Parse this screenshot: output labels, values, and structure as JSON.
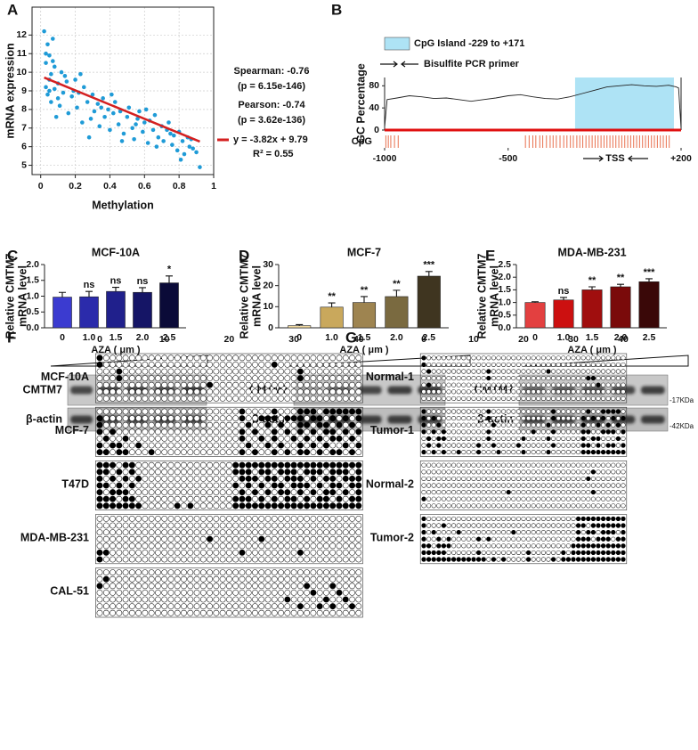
{
  "panel_labels": [
    "A",
    "B",
    "C",
    "D",
    "E",
    "F",
    "G"
  ],
  "chart_data": [
    {
      "type": "scatter",
      "xlabel": "Methylation",
      "ylabel": "mRNA expression",
      "color": "#1f9bd7",
      "grid": true,
      "xlim": [
        -0.05,
        1.0
      ],
      "ylim": [
        4.5,
        13.5
      ],
      "xticks": [
        0,
        0.2,
        0.4,
        0.6,
        0.8,
        1
      ],
      "yticks": [
        5,
        6,
        7,
        8,
        9,
        10,
        11,
        12
      ],
      "x": [
        0.02,
        0.03,
        0.03,
        0.04,
        0.04,
        0.05,
        0.05,
        0.06,
        0.06,
        0.07,
        0.08,
        0.08,
        0.09,
        0.1,
        0.1,
        0.12,
        0.13,
        0.15,
        0.16,
        0.18,
        0.2,
        0.21,
        0.22,
        0.24,
        0.25,
        0.27,
        0.28,
        0.3,
        0.31,
        0.33,
        0.34,
        0.36,
        0.37,
        0.39,
        0.4,
        0.42,
        0.43,
        0.45,
        0.46,
        0.48,
        0.5,
        0.51,
        0.53,
        0.54,
        0.56,
        0.57,
        0.59,
        0.6,
        0.62,
        0.63,
        0.65,
        0.66,
        0.68,
        0.7,
        0.71,
        0.73,
        0.74,
        0.76,
        0.77,
        0.79,
        0.8,
        0.82,
        0.83,
        0.85,
        0.86,
        0.88,
        0.9,
        0.92,
        0.03,
        0.05,
        0.07,
        0.11,
        0.14,
        0.19,
        0.23,
        0.29,
        0.35,
        0.41,
        0.47,
        0.55,
        0.61,
        0.67,
        0.75,
        0.81,
        0.87
      ],
      "y": [
        12.2,
        10.5,
        9.2,
        11.5,
        8.8,
        10.9,
        9.6,
        9.9,
        8.4,
        11.8,
        9.1,
        10.3,
        7.6,
        9.4,
        8.6,
        10.0,
        8.9,
        9.5,
        7.8,
        8.7,
        9.6,
        8.1,
        8.9,
        7.3,
        9.2,
        8.4,
        6.5,
        8.8,
        7.9,
        8.3,
        7.1,
        8.6,
        7.6,
        8.0,
        6.9,
        7.8,
        8.4,
        7.2,
        7.9,
        6.7,
        7.6,
        8.1,
        7.0,
        6.4,
        7.5,
        7.9,
        6.8,
        7.3,
        6.2,
        7.4,
        6.9,
        7.7,
        6.5,
        7.1,
        6.3,
        6.9,
        7.3,
        6.1,
        6.6,
        5.8,
        6.8,
        6.3,
        5.6,
        6.5,
        6.0,
        5.9,
        5.7,
        4.9,
        11.0,
        9.0,
        10.6,
        8.2,
        9.8,
        9.0,
        9.9,
        7.5,
        8.1,
        8.8,
        6.3,
        7.2,
        8.0,
        6.0,
        6.7,
        5.3,
        6.4
      ],
      "annotations": [
        "Spearman: -0.76",
        "(p = 6.15e-146)",
        "Pearson: -0.74",
        "(p = 3.62e-136)"
      ],
      "trend": {
        "slope": -3.82,
        "intercept": 9.79,
        "label": "y = -3.82x + 9.79",
        "r2_label": "R² = 0.55",
        "color": "#d42020"
      }
    },
    {
      "type": "line",
      "ylabel": "GC Percentage",
      "color": "#222222",
      "baseline_color": "#e01010",
      "xlim": [
        -1000,
        200
      ],
      "ylim": [
        0,
        95
      ],
      "xticks": [
        -1000,
        -500,
        {
          "value": 200,
          "label": "+200"
        }
      ],
      "yticks": [
        0,
        40,
        80
      ],
      "x": [
        -1000,
        -990,
        -950,
        -900,
        -850,
        -800,
        -750,
        -700,
        -650,
        -600,
        -550,
        -500,
        -450,
        -400,
        -350,
        -300,
        -250,
        -200,
        -150,
        -100,
        -50,
        0,
        50,
        100,
        150,
        180,
        190,
        200
      ],
      "y": [
        5,
        55,
        58,
        62,
        60,
        57,
        58,
        55,
        52,
        55,
        58,
        62,
        64,
        60,
        57,
        56,
        60,
        66,
        72,
        78,
        80,
        82,
        80,
        79,
        81,
        78,
        76,
        3
      ],
      "island": {
        "range": [
          -229,
          171
        ],
        "label": "CpG Island -229 to +171",
        "color": "#aee3f5"
      },
      "primer_label": "Bisulfite PCR primer",
      "cpg_label": "CpG",
      "cpg_color": "#e8704e",
      "tss_label": "TSS",
      "cpg_sites": [
        -995,
        -985,
        -975,
        -960,
        -945,
        -430,
        -415,
        -400,
        -388,
        -372,
        -360,
        -345,
        -330,
        -318,
        -305,
        -290,
        -275,
        -262,
        -248,
        -236,
        -222,
        -210,
        -198,
        -185,
        -172,
        -160,
        -148,
        -136,
        -124,
        -112,
        -100,
        -88,
        -76,
        -64,
        -52,
        -40,
        -28,
        -16,
        -4,
        8,
        20,
        32,
        44,
        56,
        68,
        80,
        92,
        104,
        116,
        128,
        140,
        152
      ]
    },
    {
      "type": "bar",
      "title": "MCF-10A",
      "ylabel": [
        "Relative CMTM7",
        "mRNA level"
      ],
      "xlabel": "AZA ( μm )",
      "categories": [
        "0",
        "1.0",
        "1.5",
        "2.0",
        "2.5"
      ],
      "values": [
        0.97,
        0.98,
        1.15,
        1.12,
        1.42
      ],
      "errors": [
        0.15,
        0.17,
        0.13,
        0.15,
        0.22
      ],
      "annotations": [
        null,
        "ns",
        "ns",
        "ns",
        "*"
      ],
      "colors": [
        "#3b3bd0",
        "#2b2bab",
        "#20208c",
        "#151566",
        "#0b0b38"
      ],
      "ylim": [
        0,
        2.0
      ],
      "yticks": [
        {
          "value": 0,
          "label": "0.0"
        },
        0.5,
        {
          "value": 1,
          "label": "1.0"
        },
        1.5,
        {
          "value": 2,
          "label": "2.0"
        }
      ],
      "blot": {
        "rows": [
          "CMTM7",
          "β-actin"
        ]
      }
    },
    {
      "type": "bar",
      "title": "MCF-7",
      "ylabel": [
        "Relative CMTM7",
        "mRNA level"
      ],
      "xlabel": "AZA ( μm )",
      "categories": [
        "0",
        "1.0",
        "1.5",
        "2.0",
        "2.5"
      ],
      "values": [
        1.0,
        9.8,
        12.0,
        14.8,
        24.5
      ],
      "errors": [
        0.5,
        2.0,
        2.8,
        3.0,
        2.2
      ],
      "annotations": [
        null,
        "**",
        "**",
        "**",
        "***"
      ],
      "colors": [
        "#f0d9a0",
        "#c9a85c",
        "#9e8450",
        "#7a6a40",
        "#3f3520"
      ],
      "ylim": [
        0,
        30
      ],
      "yticks": [
        0,
        10,
        20,
        30
      ],
      "blot": {
        "rows": [
          "CMTM7",
          "β-actin"
        ]
      }
    },
    {
      "type": "bar",
      "title": "MDA-MB-231",
      "ylabel": [
        "Relative CMTM7",
        "mRNA level"
      ],
      "xlabel": "AZA ( μm )",
      "categories": [
        "0",
        "1.0",
        "1.5",
        "2.0",
        "2.5"
      ],
      "values": [
        1.0,
        1.1,
        1.5,
        1.62,
        1.82
      ],
      "errors": [
        0.03,
        0.1,
        0.12,
        0.1,
        0.12
      ],
      "annotations": [
        null,
        "ns",
        "**",
        "**",
        "***"
      ],
      "colors": [
        "#e34040",
        "#cc1010",
        "#a00e0e",
        "#7a0a0a",
        "#3a0808"
      ],
      "ylim": [
        0,
        2.5
      ],
      "yticks": [
        {
          "value": 0,
          "label": "0.0"
        },
        0.5,
        {
          "value": 1,
          "label": "1.0"
        },
        1.5,
        {
          "value": 2,
          "label": "2.0"
        },
        2.5
      ],
      "blot": {
        "rows": [
          "CMTM7",
          "β-actin"
        ],
        "markers": [
          "-17KDa",
          "-42KDa"
        ]
      }
    }
  ],
  "methylation": [
    {
      "columns": [
        0,
        10,
        20,
        30,
        40
      ],
      "samples": [
        {
          "name": "MCF-10A",
          "methylated": [
            [
              0
            ],
            [
              0,
              27
            ],
            [
              3,
              31
            ],
            [
              3,
              31
            ],
            [
              17
            ],
            [],
            []
          ]
        },
        {
          "name": "MCF-7",
          "methylated": [
            [
              22,
              27,
              31,
              32,
              33,
              35,
              36,
              37,
              38,
              39,
              40
            ],
            [
              0,
              22,
              25,
              26,
              27,
              29,
              30,
              31,
              33,
              34,
              36,
              38,
              40
            ],
            [
              0,
              23,
              26,
              28,
              31,
              32,
              34,
              35,
              37,
              39
            ],
            [
              0,
              2,
              22,
              24,
              27,
              29,
              31,
              33,
              35,
              36,
              38,
              40
            ],
            [
              1,
              4,
              22,
              25,
              27,
              30,
              32,
              34,
              36,
              37,
              39
            ],
            [
              0,
              2,
              3,
              6,
              23,
              26,
              28,
              31,
              33,
              35,
              38,
              40
            ],
            [
              0,
              1,
              3,
              4,
              8,
              22,
              24,
              27,
              29,
              31,
              32,
              34,
              36,
              37,
              39
            ]
          ]
        },
        {
          "name": "T47D",
          "methylated": [
            [
              0,
              1,
              2,
              4,
              5,
              21,
              22,
              23,
              24,
              25,
              26,
              27,
              28,
              29,
              30,
              31,
              32,
              33,
              34,
              35,
              36,
              37,
              38,
              39,
              40
            ],
            [
              0,
              1,
              3,
              5,
              21,
              22,
              23,
              25,
              26,
              28,
              29,
              30,
              32,
              33,
              34,
              36,
              37,
              38,
              40
            ],
            [
              0,
              2,
              4,
              6,
              22,
              23,
              24,
              26,
              27,
              29,
              30,
              31,
              33,
              35,
              36,
              38,
              39,
              40
            ],
            [
              0,
              1,
              3,
              5,
              21,
              23,
              25,
              27,
              28,
              30,
              31,
              32,
              34,
              36,
              37,
              39,
              40
            ],
            [
              0,
              2,
              3,
              4,
              22,
              24,
              26,
              28,
              29,
              31,
              33,
              35,
              36,
              38,
              40
            ],
            [
              0,
              1,
              2,
              4,
              5,
              21,
              22,
              23,
              25,
              27,
              29,
              30,
              32,
              34,
              35,
              37,
              39,
              40
            ],
            [
              0,
              1,
              2,
              3,
              4,
              5,
              6,
              12,
              14,
              21,
              22,
              23,
              24,
              25,
              26,
              27,
              28,
              29,
              30,
              31,
              32,
              33,
              34,
              35,
              36,
              37,
              38,
              39,
              40
            ]
          ]
        },
        {
          "name": "MDA-MB-231",
          "methylated": [
            [],
            [],
            [],
            [
              17,
              25
            ],
            [],
            [
              0,
              1,
              22,
              31
            ],
            [
              0
            ]
          ]
        },
        {
          "name": "CAL-51",
          "methylated": [
            [],
            [
              1
            ],
            [
              0,
              32,
              36
            ],
            [
              33,
              37
            ],
            [
              29,
              35,
              38
            ],
            [
              31,
              34,
              36,
              39
            ],
            []
          ]
        }
      ]
    },
    {
      "columns": [
        0,
        10,
        20,
        30,
        40
      ],
      "samples": [
        {
          "name": "Normal-1",
          "methylated": [
            [
              0
            ],
            [
              0
            ],
            [
              1,
              13,
              25
            ],
            [
              13,
              33,
              34
            ],
            [
              1,
              35
            ],
            [],
            []
          ]
        },
        {
          "name": "Tumor-1",
          "methylated": [
            [
              0,
              13,
              26,
              33,
              36,
              37,
              38,
              39
            ],
            [
              0,
              2,
              13,
              26,
              32,
              34,
              36,
              38,
              40
            ],
            [
              0,
              3,
              14,
              25,
              32,
              35,
              37,
              39
            ],
            [
              0,
              2,
              4,
              13,
              22,
              26,
              32,
              33,
              36,
              37,
              38,
              40
            ],
            [
              1,
              3,
              4,
              13,
              20,
              25,
              32,
              34,
              35,
              39
            ],
            [
              1,
              3,
              11,
              14,
              19,
              26,
              32,
              33,
              35,
              37,
              38,
              40
            ],
            [
              0,
              2,
              4,
              7,
              11,
              15,
              20,
              25,
              32,
              33,
              34,
              35,
              36,
              37,
              38,
              39,
              40
            ]
          ]
        },
        {
          "name": "Normal-2",
          "methylated": [
            [],
            [
              34
            ],
            [
              33
            ],
            [],
            [
              17,
              34
            ],
            [
              0
            ],
            []
          ]
        },
        {
          "name": "Tumor-2",
          "methylated": [
            [
              0,
              31,
              32,
              33,
              34,
              35,
              36,
              37,
              38,
              39,
              40
            ],
            [
              0,
              4,
              31,
              32,
              34,
              35,
              36,
              37,
              38,
              39,
              40
            ],
            [
              0,
              2,
              7,
              18,
              31,
              33,
              34,
              36,
              37,
              38,
              40
            ],
            [
              0,
              3,
              5,
              11,
              13,
              31,
              32,
              33,
              35,
              36,
              37,
              39,
              40
            ],
            [
              0,
              1,
              3,
              4,
              5,
              30,
              31,
              32,
              33,
              34,
              35,
              36,
              37,
              38,
              39,
              40
            ],
            [
              0,
              1,
              2,
              3,
              4,
              11,
              21,
              28,
              30,
              31,
              32,
              33,
              34,
              35,
              36,
              37,
              38,
              39,
              40
            ],
            [
              0,
              1,
              2,
              3,
              4,
              5,
              6,
              7,
              8,
              9,
              10,
              11,
              12,
              14,
              16,
              21,
              26,
              28,
              29,
              30,
              31,
              32,
              33,
              34,
              35,
              36,
              37,
              38,
              39,
              40
            ]
          ]
        }
      ]
    }
  ]
}
